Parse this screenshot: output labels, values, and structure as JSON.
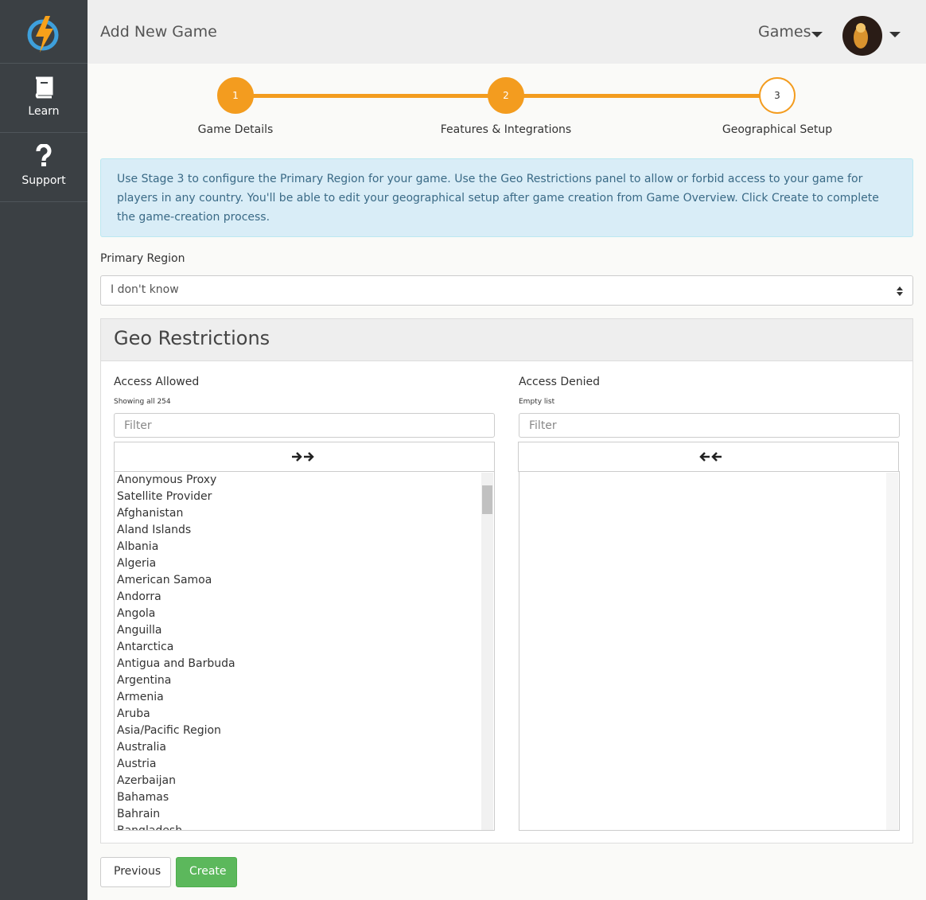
{
  "sidebar": {
    "items": [
      "Learn",
      "Support"
    ]
  },
  "header": {
    "title": "Add New Game",
    "menu": "Games"
  },
  "steps": [
    {
      "number": "1",
      "label": "Game Details"
    },
    {
      "number": "2",
      "label": "Features & Integrations"
    },
    {
      "number": "3",
      "label": "Geographical Setup"
    }
  ],
  "info": "Use Stage 3 to configure the Primary Region for your game. Use the Geo Restrictions panel to allow or forbid access to your game for players in any country. You'll be able to edit your geographical setup after game creation from Game Overview. Click Create to complete the game-creation process.",
  "primary_region": {
    "label": "Primary Region",
    "value": "I don't know"
  },
  "geo": {
    "title": "Geo Restrictions",
    "allowed": {
      "label": "Access Allowed",
      "status": "Showing all 254",
      "filter": "Filter",
      "items": [
        "Anonymous Proxy",
        "Satellite Provider",
        "Afghanistan",
        "Aland Islands",
        "Albania",
        "Algeria",
        "American Samoa",
        "Andorra",
        "Angola",
        "Anguilla",
        "Antarctica",
        "Antigua and Barbuda",
        "Argentina",
        "Armenia",
        "Aruba",
        "Asia/Pacific Region",
        "Australia",
        "Austria",
        "Azerbaijan",
        "Bahamas",
        "Bahrain",
        "Bangladesh"
      ]
    },
    "denied": {
      "label": "Access Denied",
      "status": "Empty list",
      "filter": "Filter"
    }
  },
  "buttons": {
    "previous": "Previous",
    "create": "Create"
  }
}
